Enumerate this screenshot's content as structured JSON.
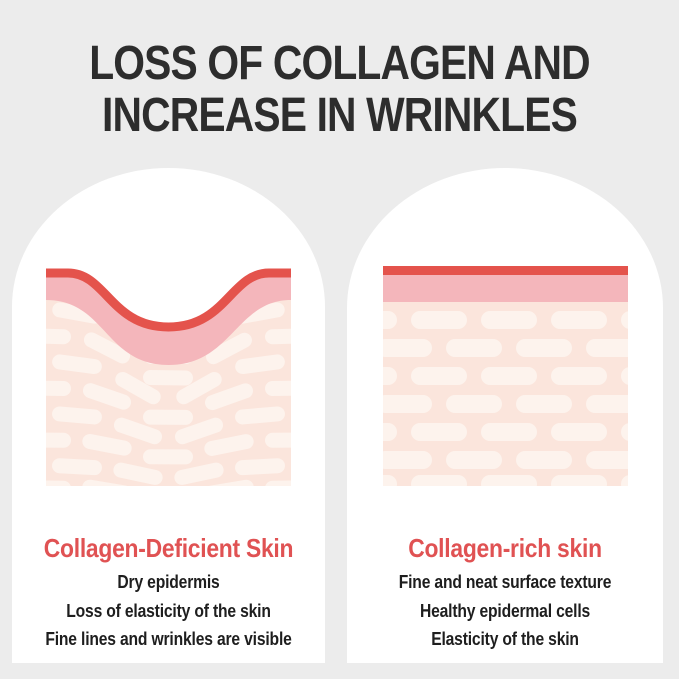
{
  "title": {
    "line1": "LOSS OF COLLAGEN AND",
    "line2": "INCREASE IN WRINKLES"
  },
  "panels": [
    {
      "id": "collagen-deficient",
      "heading": "Collagen-Deficient Skin",
      "skin_type": "wrinkled",
      "lines": [
        "Dry epidermis",
        "Loss of elasticity of the skin",
        "Fine lines and wrinkles are visible"
      ]
    },
    {
      "id": "collagen-rich",
      "heading": "Collagen-rich skin",
      "skin_type": "smooth",
      "lines": [
        "Fine and neat surface texture",
        "Healthy epidermal cells",
        "Elasticity of the skin"
      ]
    }
  ],
  "colors": {
    "background": "#ececec",
    "panel": "#ffffff",
    "title_text": "#2d2d2d",
    "heading_red": "#e05253",
    "body_text": "#1e1e1e",
    "red": "#e4534c",
    "pink": "#f4b6bb",
    "dermis": "#fbe5dc",
    "fiber": "#fdf3ed"
  }
}
